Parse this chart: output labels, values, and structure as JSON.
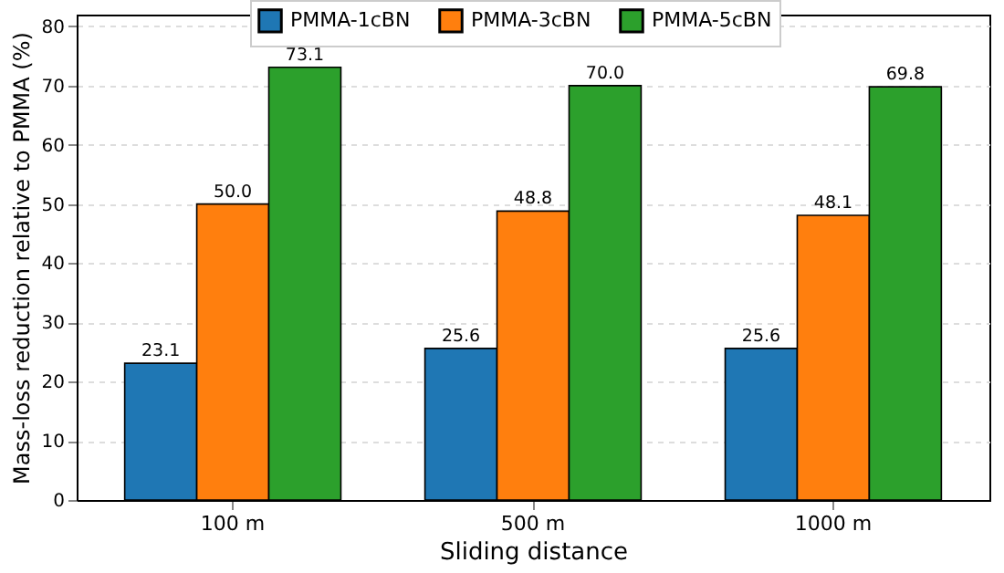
{
  "chart_data": {
    "type": "bar",
    "xlabel": "Sliding distance",
    "ylabel": "Mass-loss reduction relative to PMMA (%)",
    "categories": [
      "100 m",
      "500 m",
      "1000 m"
    ],
    "series": [
      {
        "name": "PMMA-1cBN",
        "color": "#1f77b4",
        "values": [
          23.1,
          25.6,
          25.6
        ]
      },
      {
        "name": "PMMA-3cBN",
        "color": "#ff7f0e",
        "values": [
          50.0,
          48.8,
          48.1
        ]
      },
      {
        "name": "PMMA-5cBN",
        "color": "#2ca02c",
        "values": [
          73.1,
          70.0,
          69.8
        ]
      }
    ],
    "value_labels": [
      [
        "23.1",
        "25.6",
        "25.6"
      ],
      [
        "50.0",
        "48.8",
        "48.1"
      ],
      [
        "73.1",
        "70.0",
        "69.8"
      ]
    ],
    "ylim": [
      0,
      82
    ],
    "yticks": [
      0,
      10,
      20,
      30,
      40,
      50,
      60,
      70,
      80
    ],
    "grid": "y",
    "legend": "top"
  }
}
